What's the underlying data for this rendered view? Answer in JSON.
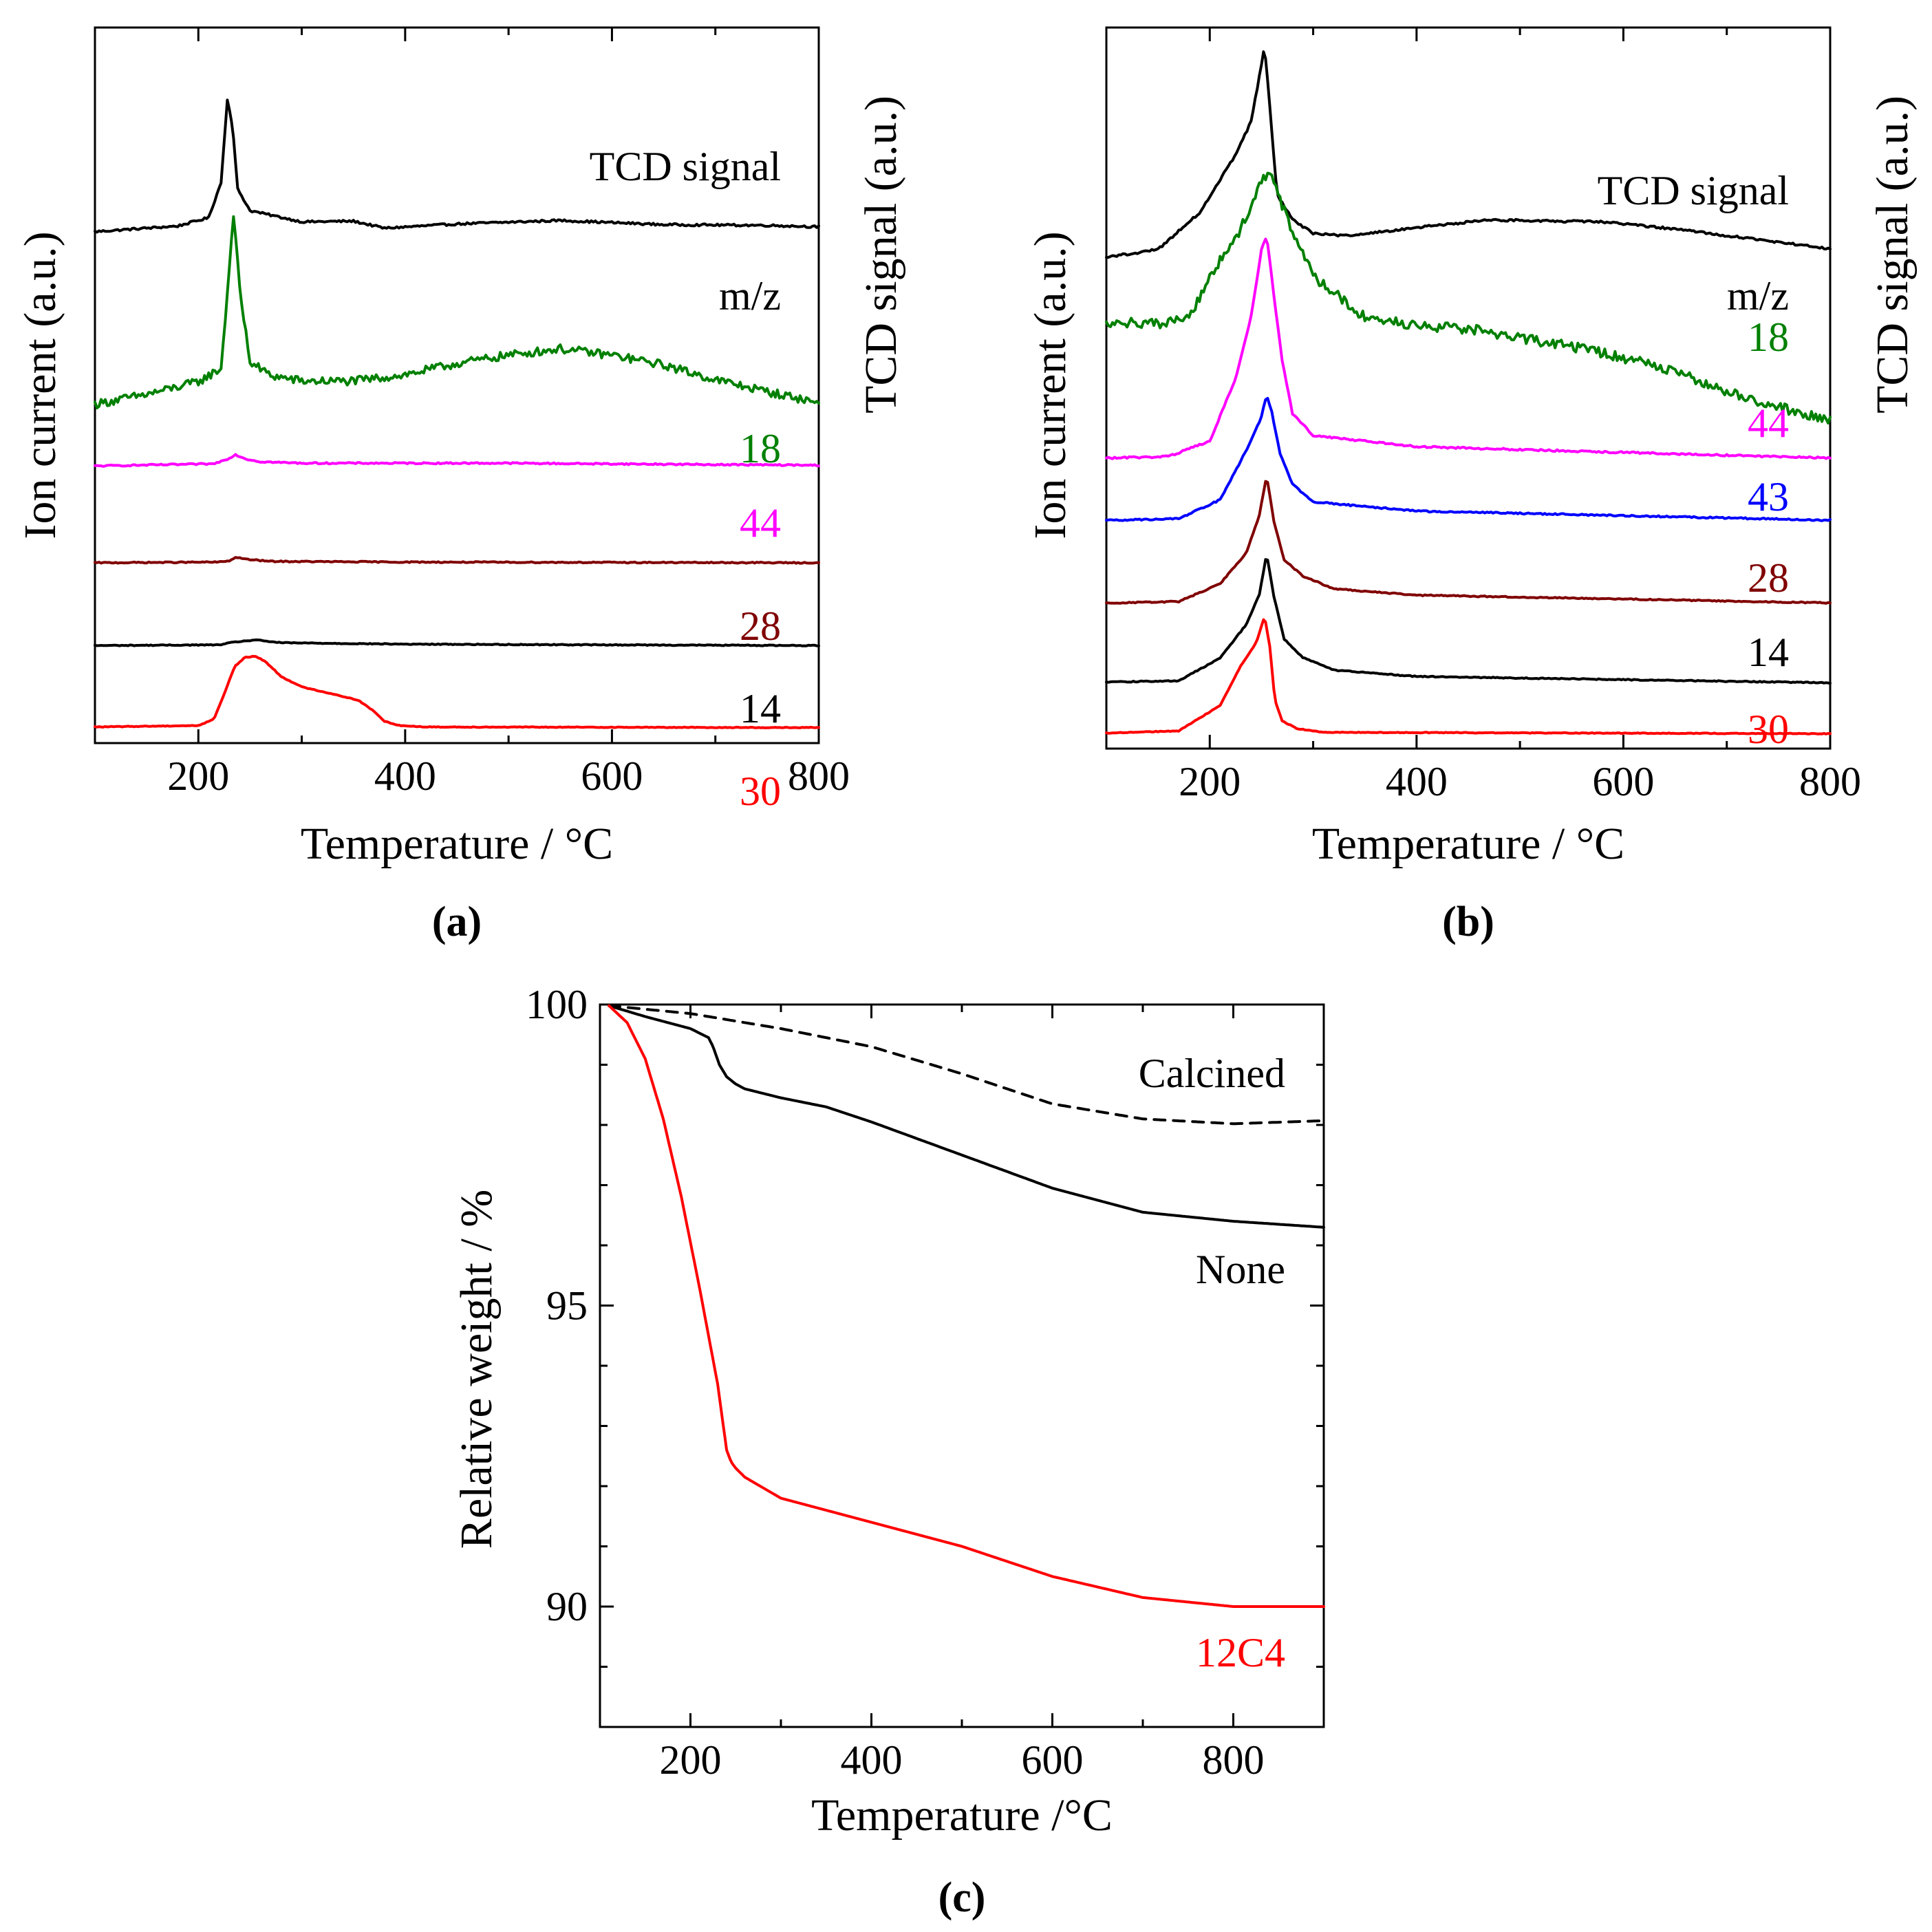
{
  "chart_data": [
    {
      "panel": "a",
      "panel_label": "(a)",
      "type": "line",
      "xlabel": "Temperature / °C",
      "ylabel_left": "Ion current (a.u.)",
      "ylabel_right": "TCD signal (a.u.)",
      "xlim": [
        100,
        800
      ],
      "ylim": [
        0,
        100
      ],
      "xticks": [
        "200",
        "400",
        "600",
        "800"
      ],
      "xtick_values": [
        200,
        400,
        600,
        800
      ],
      "mz_label": "m/z",
      "series": [
        {
          "name": "TCD signal",
          "color": "#000000",
          "noise": 0.15,
          "x": [
            100,
            180,
            210,
            222,
            228,
            233,
            238,
            250,
            300,
            350,
            380,
            450,
            550,
            650,
            750,
            800
          ],
          "y": [
            70.9,
            71.7,
            72.9,
            77.9,
            89.8,
            86.0,
            77.0,
            73.9,
            72.3,
            72.4,
            71.4,
            72.0,
            72.5,
            71.9,
            71.8,
            71.6
          ]
        },
        {
          "name": "18",
          "color": "#008000",
          "noise": 0.6,
          "x": [
            100,
            150,
            200,
            222,
            228,
            234,
            240,
            250,
            270,
            300,
            350,
            400,
            450,
            500,
            550,
            600,
            650,
            700,
            750,
            800
          ],
          "y": [
            46.3,
            47.7,
            49.5,
            51.4,
            62.1,
            73.6,
            62.6,
            52.3,
            50.4,
            49.6,
            49.6,
            50.5,
            52.1,
            53.3,
            54.2,
            53.3,
            51.9,
            49.8,
            48.1,
            46.5
          ]
        },
        {
          "name": "44",
          "color": "#ff00ff",
          "noise": 0.1,
          "x": [
            100,
            215,
            228,
            236,
            246,
            260,
            300,
            500,
            800
          ],
          "y": [
            37.5,
            37.8,
            38.5,
            39.1,
            38.5,
            38.1,
            37.9,
            37.9,
            37.6
          ]
        },
        {
          "name": "28",
          "color": "#800000",
          "noise": 0.08,
          "x": [
            100,
            220,
            230,
            237,
            246,
            270,
            400,
            800
          ],
          "y": [
            23.7,
            23.8,
            24.0,
            24.5,
            24.2,
            23.9,
            23.8,
            23.7
          ]
        },
        {
          "name": "14",
          "color": "#000000",
          "noise": 0.06,
          "x": [
            100,
            220,
            235,
            255,
            280,
            400,
            800
          ],
          "y": [
            11.9,
            12.0,
            12.4,
            12.7,
            12.3,
            12.1,
            11.9
          ]
        },
        {
          "name": "30",
          "color": "#ff0000",
          "noise": 0.05,
          "x": [
            100,
            200,
            215,
            225,
            235,
            245,
            255,
            265,
            280,
            300,
            330,
            355,
            370,
            380,
            395,
            420,
            800
          ],
          "y": [
            0.3,
            0.5,
            1.4,
            5.0,
            8.9,
            10.2,
            10.4,
            9.6,
            7.5,
            6.0,
            5.0,
            4.1,
            2.5,
            1.1,
            0.5,
            0.3,
            0.2
          ]
        }
      ]
    },
    {
      "panel": "b",
      "panel_label": "(b)",
      "type": "line",
      "xlabel": "Temperature / °C",
      "ylabel_left": "Ion current (a.u.)",
      "ylabel_right": "TCD signal (a.u.)",
      "xlim": [
        100,
        800
      ],
      "ylim": [
        0,
        100
      ],
      "xticks": [
        "200",
        "400",
        "600",
        "800"
      ],
      "xtick_values": [
        200,
        400,
        600,
        800
      ],
      "mz_label": "m/z",
      "series": [
        {
          "name": "TCD signal",
          "color": "#000000",
          "noise": 0.15,
          "x": [
            100,
            150,
            190,
            225,
            240,
            248,
            253,
            258,
            265,
            280,
            300,
            330,
            400,
            470,
            580,
            650,
            800
          ],
          "y": [
            67.5,
            68.6,
            73.8,
            82.0,
            86.7,
            93.1,
            97.4,
            89.0,
            76.4,
            72.8,
            70.9,
            70.5,
            71.7,
            72.8,
            72.5,
            71.5,
            68.7
          ]
        },
        {
          "name": "18",
          "color": "#008000",
          "noise": 0.7,
          "x": [
            100,
            150,
            180,
            200,
            230,
            250,
            258,
            265,
            280,
            300,
            350,
            400,
            450,
            500,
            550,
            600,
            650,
            700,
            750,
            800
          ],
          "y": [
            58.4,
            58.0,
            59.1,
            64.7,
            71.5,
            78.6,
            79.3,
            76.6,
            71.1,
            64.8,
            59.0,
            57.8,
            57.4,
            56.1,
            54.9,
            53.3,
            51.4,
            48.6,
            46.3,
            44.3
          ]
        },
        {
          "name": "44",
          "color": "#ff00ff",
          "noise": 0.12,
          "x": [
            100,
            160,
            200,
            225,
            240,
            250,
            255,
            262,
            270,
            280,
            300,
            400,
            600,
            800
          ],
          "y": [
            39.1,
            39.3,
            41.5,
            50.3,
            59.2,
            68.5,
            70.6,
            62.1,
            52.9,
            45.4,
            42.3,
            40.7,
            39.9,
            39.1
          ]
        },
        {
          "name": "43",
          "color": "#0000ff",
          "noise": 0.1,
          "x": [
            100,
            170,
            210,
            235,
            250,
            255,
            260,
            268,
            280,
            300,
            400,
            800
          ],
          "y": [
            30.3,
            30.5,
            33.2,
            40.1,
            44.9,
            48.1,
            45.6,
            39.7,
            35.4,
            32.9,
            31.6,
            30.3
          ]
        },
        {
          "name": "28",
          "color": "#800000",
          "noise": 0.08,
          "x": [
            100,
            170,
            210,
            235,
            248,
            255,
            262,
            272,
            290,
            320,
            400,
            800
          ],
          "y": [
            18.6,
            18.8,
            21.3,
            25.6,
            31.0,
            36.7,
            30.1,
            24.7,
            22.4,
            20.6,
            19.7,
            18.6
          ]
        },
        {
          "name": "14",
          "color": "#000000",
          "noise": 0.07,
          "x": [
            100,
            170,
            210,
            235,
            248,
            255,
            262,
            272,
            290,
            320,
            400,
            800
          ],
          "y": [
            7.4,
            7.6,
            10.8,
            15.5,
            19.8,
            25.5,
            19.5,
            13.5,
            10.9,
            9.1,
            8.2,
            7.3
          ]
        },
        {
          "name": "30",
          "color": "#ff0000",
          "noise": 0.05,
          "x": [
            100,
            170,
            210,
            230,
            245,
            253,
            258,
            263,
            270,
            285,
            310,
            800
          ],
          "y": [
            0.2,
            0.5,
            4.1,
            9.7,
            13.0,
            16.7,
            12.5,
            4.8,
            1.9,
            0.8,
            0.3,
            0.1
          ]
        }
      ]
    },
    {
      "panel": "c",
      "panel_label": "(c)",
      "type": "line",
      "xlabel": "Temperature /°C",
      "ylabel": "Relative weight / %",
      "xlim": [
        100,
        900
      ],
      "ylim": [
        88,
        100
      ],
      "xticks": [
        "200",
        "400",
        "600",
        "800"
      ],
      "xtick_values": [
        200,
        400,
        600,
        800
      ],
      "yticks": [
        "90",
        "95",
        "100"
      ],
      "ytick_values": [
        90,
        95,
        100
      ],
      "series": [
        {
          "name": "Calcined",
          "color": "#000000",
          "dashed": true,
          "x": [
            110,
            200,
            300,
            400,
            500,
            550,
            600,
            700,
            800,
            900
          ],
          "y": [
            99.98,
            99.85,
            99.6,
            99.3,
            98.85,
            98.6,
            98.35,
            98.1,
            98.02,
            98.07
          ]
        },
        {
          "name": "None",
          "color": "#000000",
          "dashed": false,
          "x": [
            110,
            150,
            200,
            220,
            225,
            232,
            240,
            250,
            260,
            300,
            350,
            400,
            500,
            600,
            700,
            800,
            900
          ],
          "y": [
            99.98,
            99.8,
            99.6,
            99.45,
            99.3,
            99.0,
            98.8,
            98.68,
            98.6,
            98.45,
            98.3,
            98.05,
            97.5,
            96.95,
            96.55,
            96.4,
            96.3
          ]
        },
        {
          "name": "12C4",
          "color": "#ff0000",
          "dashed": false,
          "x": [
            110,
            130,
            150,
            170,
            190,
            210,
            230,
            240,
            245,
            250,
            260,
            300,
            400,
            500,
            600,
            700,
            800,
            900
          ],
          "y": [
            99.98,
            99.7,
            99.1,
            98.1,
            96.8,
            95.3,
            93.7,
            92.6,
            92.4,
            92.3,
            92.15,
            91.8,
            91.4,
            91.0,
            90.5,
            90.15,
            90.0,
            90.0
          ]
        }
      ]
    }
  ]
}
